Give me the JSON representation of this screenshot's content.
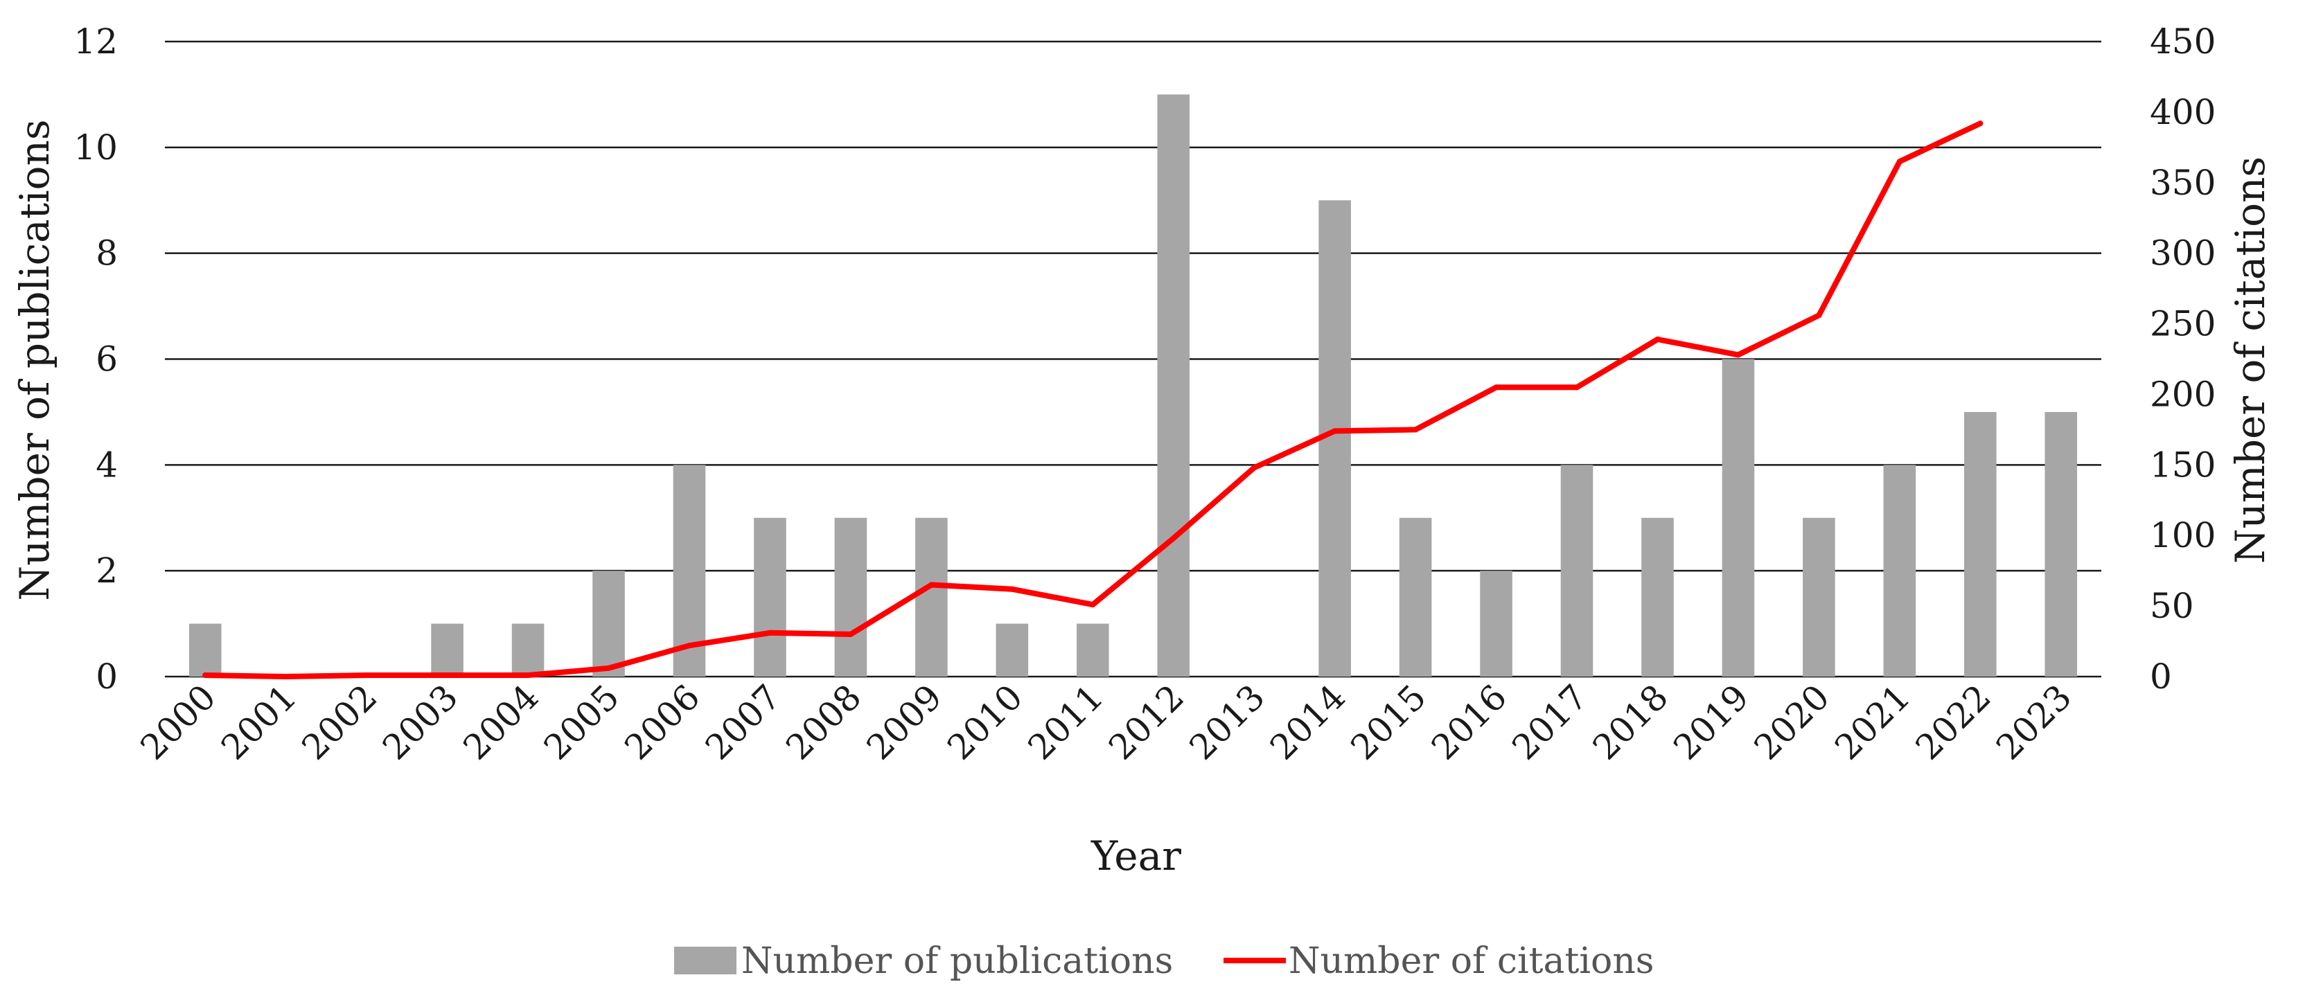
{
  "chart_data": {
    "type": "bar+line",
    "categories": [
      "2000",
      "2001",
      "2002",
      "2003",
      "2004",
      "2005",
      "2006",
      "2007",
      "2008",
      "2009",
      "2010",
      "2011",
      "2012",
      "2013",
      "2014",
      "2015",
      "2016",
      "2017",
      "2018",
      "2019",
      "2020",
      "2021",
      "2022",
      "2023"
    ],
    "series": [
      {
        "name": "Number of publications",
        "type": "bar",
        "axis": "left",
        "color": "#a6a6a6",
        "values": [
          1,
          0,
          0,
          1,
          1,
          2,
          4,
          3,
          3,
          3,
          1,
          1,
          11,
          0,
          9,
          3,
          2,
          4,
          3,
          6,
          3,
          4,
          5,
          5
        ]
      },
      {
        "name": "Number of citations",
        "type": "line",
        "axis": "right",
        "color": "#ff0000",
        "values": [
          1,
          0,
          1,
          1,
          1,
          6,
          22,
          31,
          30,
          65,
          62,
          51,
          98,
          148,
          174,
          175,
          205,
          205,
          239,
          228,
          256,
          365,
          392,
          null
        ]
      }
    ],
    "xlabel": "Year",
    "ylabel_left": "Number of publications",
    "ylabel_right": "Number of citations",
    "ylim_left": [
      0,
      12
    ],
    "ylim_right": [
      0,
      450
    ],
    "yticks_left": [
      "0",
      "2",
      "4",
      "6",
      "8",
      "10",
      "12"
    ],
    "yticks_right": [
      "0",
      "50",
      "100",
      "150",
      "200",
      "250",
      "300",
      "350",
      "400",
      "450"
    ],
    "grid": true,
    "legend_position": "bottom-center"
  }
}
